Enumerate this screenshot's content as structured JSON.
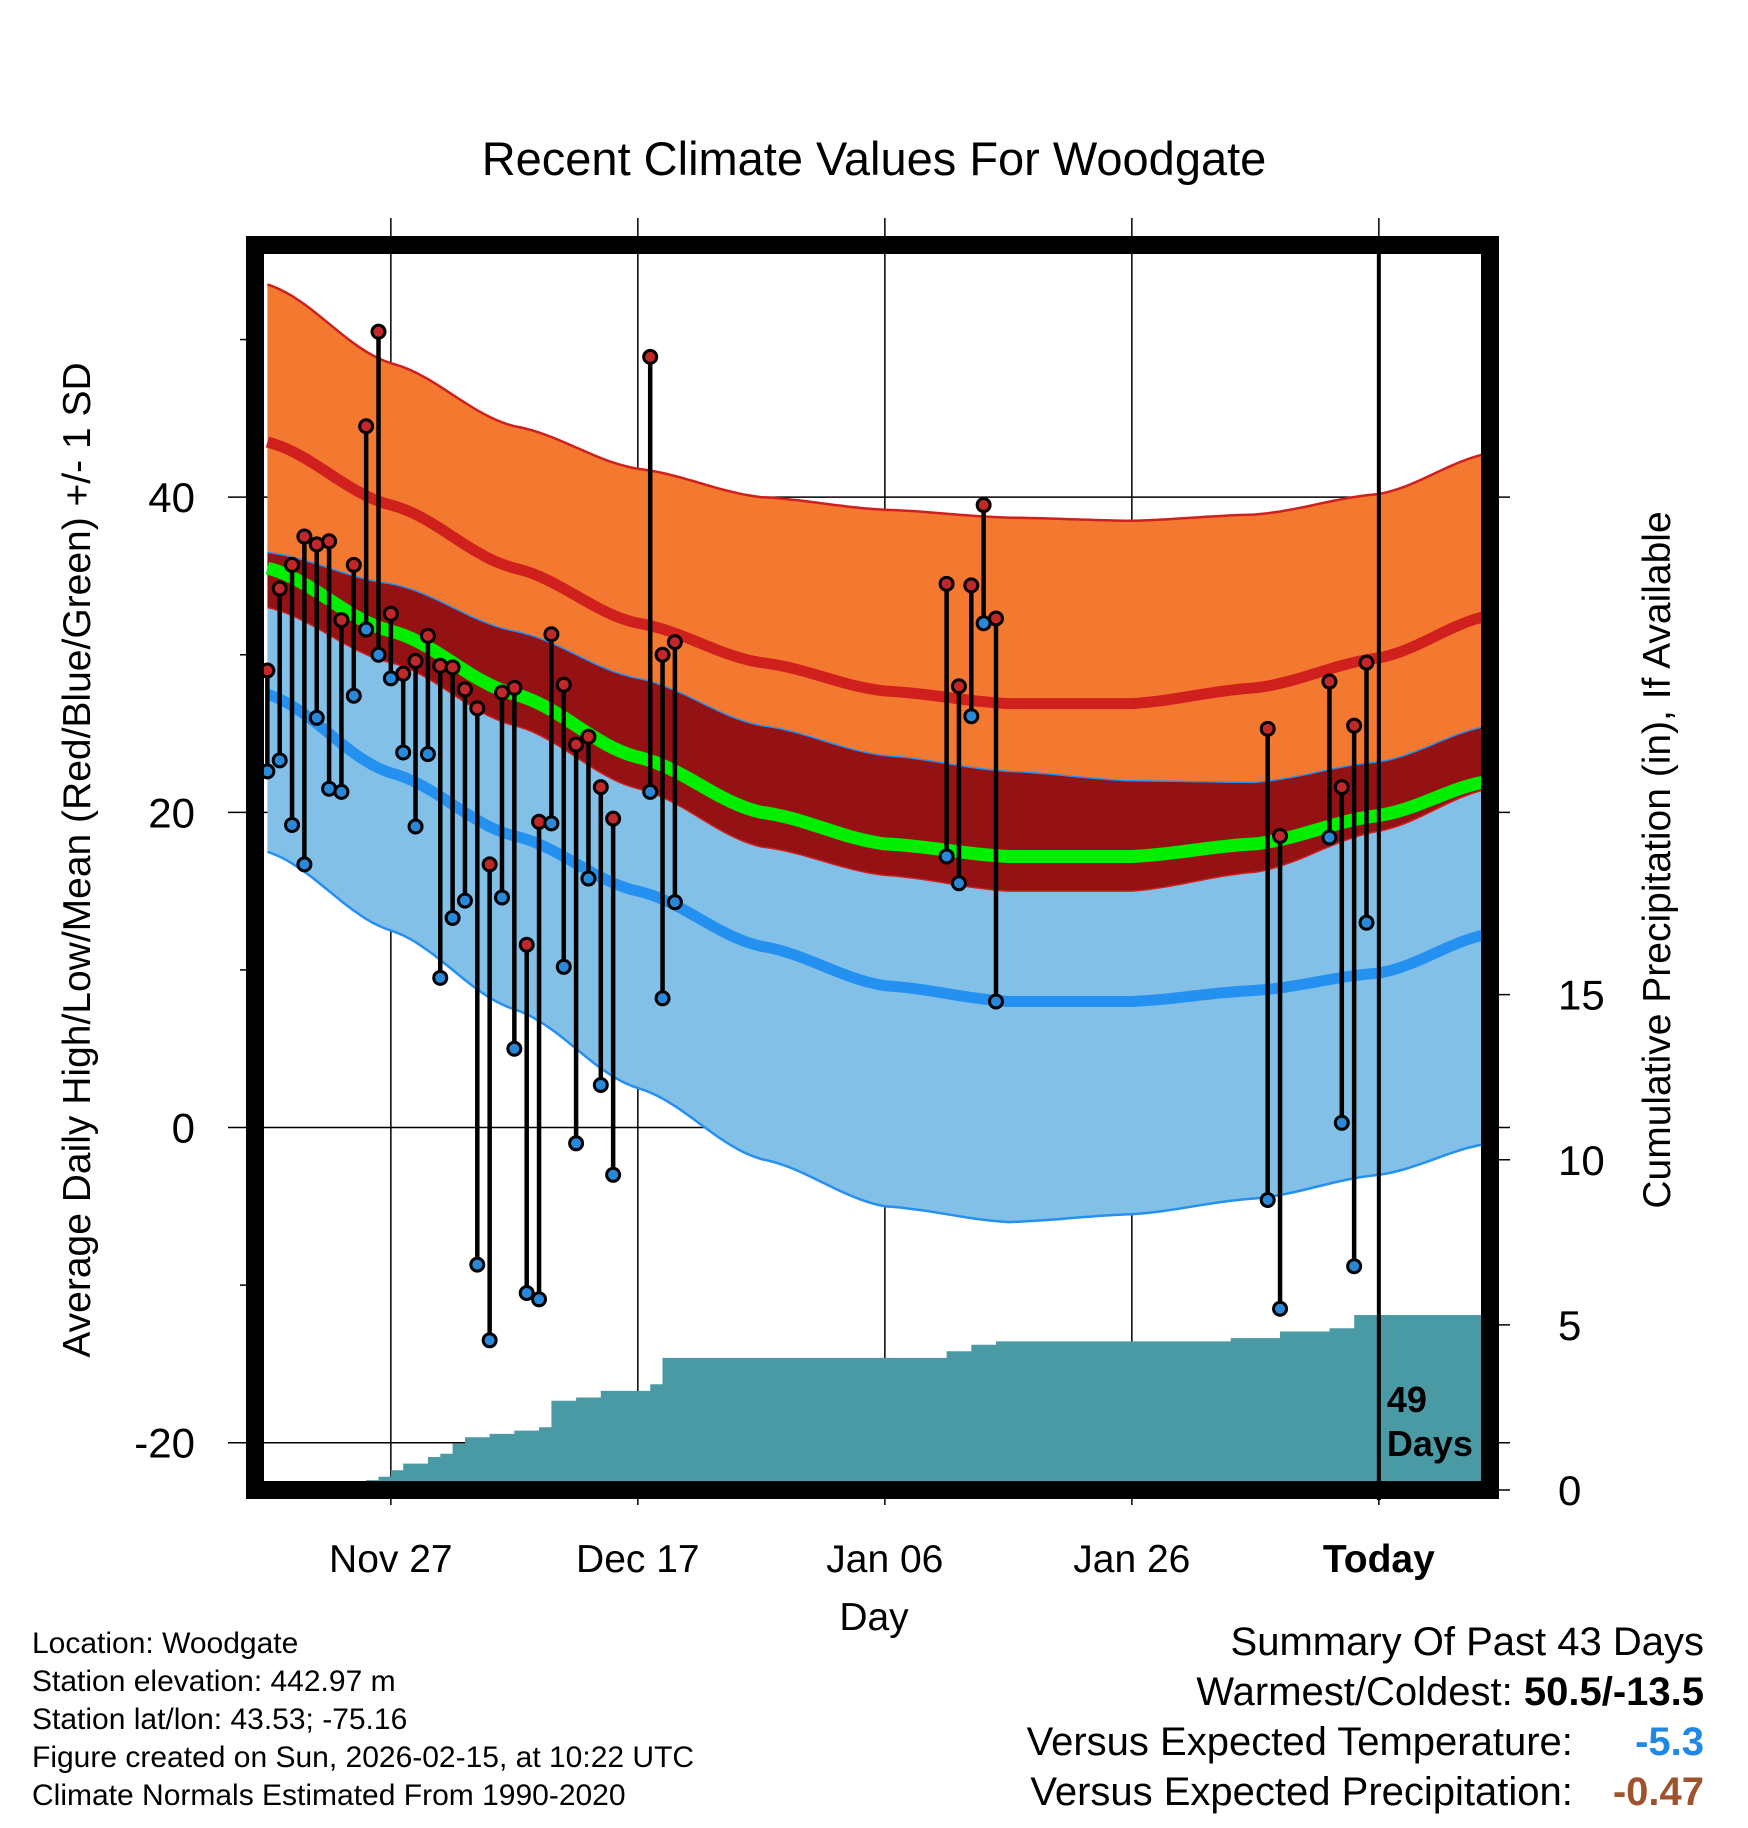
{
  "chart_data": {
    "type": "line",
    "title": "Recent Climate Values For Woodgate",
    "xlabel": "Day",
    "ylabel": "Average Daily High/Low/Mean (Red/Blue/Green) +/- 1 SD",
    "y2label": "Cumulative Precipitation (in), If Available",
    "xlim": [
      -11,
      89
    ],
    "ylim": [
      -23,
      56
    ],
    "y2lim": [
      0,
      37.7
    ],
    "x_ticks": [
      {
        "x": 0,
        "label": "Nov 27"
      },
      {
        "x": 20,
        "label": "Dec 17"
      },
      {
        "x": 40,
        "label": "Jan 06"
      },
      {
        "x": 60,
        "label": "Jan 26"
      },
      {
        "x": 80,
        "label": "Today"
      }
    ],
    "y_ticks": [
      {
        "y": -20,
        "label": "-20"
      },
      {
        "y": 0,
        "label": "0"
      },
      {
        "y": 20,
        "label": "20"
      },
      {
        "y": 40,
        "label": "40"
      }
    ],
    "y_minor_ticks": [
      -10,
      10,
      30,
      50
    ],
    "y2_ticks": [
      {
        "y": 0,
        "label": "0"
      },
      {
        "y": 5,
        "label": "5"
      },
      {
        "y": 10,
        "label": "10"
      },
      {
        "y": 15,
        "label": "15"
      }
    ],
    "today_x": 80,
    "today_label": [
      "49",
      "Days"
    ],
    "normals": {
      "x": [
        -10,
        0,
        10,
        20,
        30,
        40,
        50,
        60,
        70,
        80,
        89
      ],
      "high_mean": [
        43.5,
        39.5,
        35.5,
        32.0,
        29.5,
        27.7,
        26.9,
        26.9,
        27.9,
        29.8,
        32.5
      ],
      "high_upper": [
        53.5,
        48.5,
        44.5,
        41.8,
        40.0,
        39.2,
        38.7,
        38.5,
        38.9,
        40.2,
        42.8
      ],
      "high_lower": [
        36.5,
        34.5,
        31.5,
        28.5,
        25.5,
        23.6,
        22.6,
        22.0,
        21.9,
        23.2,
        25.5
      ],
      "avg_mean": [
        35.5,
        31.5,
        27.5,
        23.5,
        20.0,
        18.0,
        17.2,
        17.2,
        18.0,
        19.8,
        22.0
      ],
      "low_upper": [
        33.0,
        29.5,
        25.5,
        21.5,
        17.8,
        16.0,
        15.0,
        15.0,
        16.2,
        18.8,
        21.5
      ],
      "low_mean": [
        27.5,
        22.5,
        18.5,
        15.0,
        11.5,
        9.0,
        8.0,
        8.0,
        8.7,
        9.8,
        12.3
      ],
      "low_lower": [
        17.5,
        12.5,
        7.5,
        2.5,
        -2.0,
        -5.0,
        -6.0,
        -5.5,
        -4.5,
        -3.0,
        -1.0
      ]
    },
    "daily": {
      "x": [
        -10,
        -9,
        -8,
        -7,
        -6,
        -5,
        -4,
        -3,
        -2,
        -1,
        0,
        1,
        2,
        3,
        4,
        5,
        6,
        7,
        8,
        9,
        10,
        11,
        12,
        13,
        14,
        15,
        16,
        17,
        18,
        21,
        22,
        23,
        45,
        46,
        47,
        48,
        49,
        71,
        72,
        76,
        77,
        78,
        79
      ],
      "high": [
        29.0,
        34.2,
        35.7,
        37.5,
        37.0,
        37.2,
        32.2,
        35.7,
        44.5,
        50.5,
        32.6,
        28.8,
        29.6,
        31.2,
        29.3,
        29.2,
        27.8,
        26.6,
        16.7,
        27.6,
        27.9,
        11.6,
        19.4,
        31.3,
        28.1,
        24.3,
        24.8,
        21.6,
        19.6,
        48.9,
        30.0,
        30.8,
        34.5,
        28.0,
        34.4,
        39.5,
        32.3,
        25.3,
        18.5,
        28.3,
        21.6,
        25.5,
        29.5
      ],
      "low": [
        22.6,
        23.3,
        19.2,
        16.7,
        26.0,
        21.5,
        21.3,
        27.4,
        31.6,
        30.0,
        28.5,
        23.8,
        19.1,
        23.7,
        9.5,
        13.3,
        14.4,
        -8.7,
        -13.5,
        14.6,
        5.0,
        -10.5,
        -10.9,
        19.3,
        10.2,
        -1.0,
        15.8,
        2.7,
        -3.0,
        21.3,
        8.2,
        14.3,
        17.2,
        15.5,
        26.1,
        32.0,
        8.0,
        -4.6,
        -11.5,
        18.4,
        0.3,
        -8.8,
        13.0
      ]
    },
    "precip_cum": {
      "x": [
        -11,
        -3,
        -2,
        -1,
        0,
        1,
        2,
        3,
        4,
        5,
        6,
        7,
        8,
        10,
        12,
        13,
        15,
        17,
        19,
        20,
        21,
        22,
        23,
        24,
        26,
        28,
        30,
        35,
        40,
        43,
        45,
        47,
        49,
        52,
        56,
        60,
        64,
        68,
        70,
        72,
        74,
        76,
        78,
        79,
        84,
        89
      ],
      "y": [
        0,
        0,
        0.3,
        0.4,
        0.6,
        0.8,
        0.8,
        1.0,
        1.1,
        1.4,
        1.6,
        1.6,
        1.7,
        1.8,
        1.9,
        2.7,
        2.8,
        3.0,
        3.0,
        3.0,
        3.2,
        4.0,
        4.0,
        4.0,
        4.0,
        4.0,
        4.0,
        4.0,
        4.0,
        4.0,
        4.2,
        4.4,
        4.5,
        4.5,
        4.5,
        4.5,
        4.5,
        4.6,
        4.6,
        4.8,
        4.8,
        4.9,
        5.3,
        5.3,
        5.3,
        5.3
      ]
    }
  },
  "info": {
    "location": "Location: Woodgate",
    "elevation": "Station elevation: 442.97 m",
    "latlon": "Station lat/lon: 43.53; -75.16",
    "created": "Figure created on Sun, 2026-02-15, at 10:22 UTC",
    "normals_source": "Climate Normals Estimated From 1990-2020"
  },
  "summary": {
    "heading": "Summary Of Past 43 Days",
    "warm_cold_label": "Warmest/Coldest:",
    "warm_cold_value": "50.5/-13.5",
    "temp_label": "Versus Expected Temperature:",
    "temp_value": "-5.3",
    "precip_label": "Versus Expected Precipitation:",
    "precip_value": "-0.47",
    "temp_color": "#1e88e5",
    "precip_color": "#a0522d"
  },
  "colors": {
    "high_band": "#f47930",
    "high_line": "#d0201e",
    "mid_band": "#941114",
    "avg_line": "#00ee00",
    "low_band": "#82c0e7",
    "low_line": "#2490f0",
    "precip": "#4a9aa5",
    "high_dot": "#c0282a",
    "low_dot": "#2a88d8"
  }
}
